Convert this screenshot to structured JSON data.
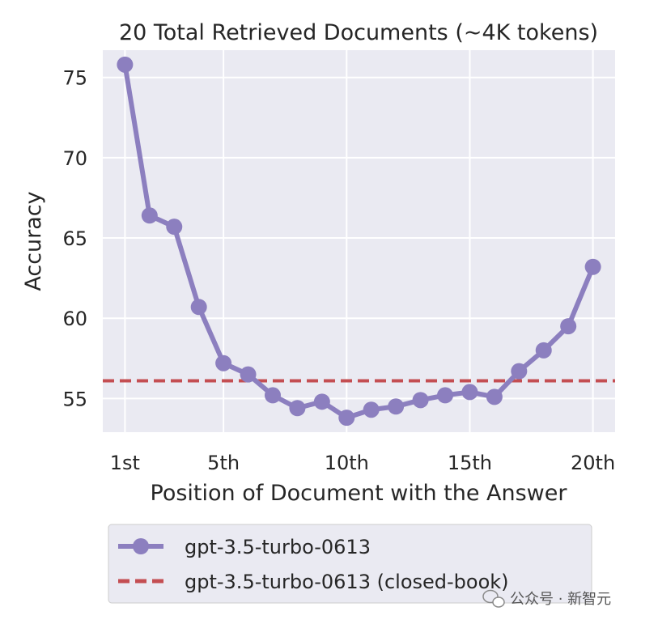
{
  "chart_data": {
    "type": "line",
    "title": "20 Total Retrieved Documents (~4K tokens)",
    "xlabel": "Position of Document with the Answer",
    "ylabel": "Accuracy",
    "x": [
      1,
      2,
      3,
      4,
      5,
      6,
      7,
      8,
      9,
      10,
      11,
      12,
      13,
      14,
      15,
      16,
      17,
      18,
      19,
      20
    ],
    "xticks": [
      1,
      5,
      10,
      15,
      20
    ],
    "xtick_labels": [
      "1st",
      "5th",
      "10th",
      "15th",
      "20th"
    ],
    "yticks": [
      55,
      60,
      65,
      70,
      75
    ],
    "xlim": [
      0.1,
      20.9
    ],
    "ylim": [
      52.9,
      76.7
    ],
    "grid": true,
    "series": [
      {
        "name": "gpt-3.5-turbo-0613",
        "color": "#8c7fbf",
        "values": [
          75.8,
          66.4,
          65.7,
          60.7,
          57.2,
          56.5,
          55.2,
          54.4,
          54.8,
          53.8,
          54.3,
          54.5,
          54.9,
          55.2,
          55.4,
          55.1,
          56.7,
          58.0,
          59.5,
          63.2
        ]
      }
    ],
    "reference_lines": [
      {
        "name": "gpt-3.5-turbo-0613 (closed-book)",
        "value": 56.1,
        "color": "#c44e52",
        "style": "dashed"
      }
    ],
    "legend_position": "below"
  },
  "watermark": {
    "text": "公众号 · 新智元",
    "icon": "wechat-icon"
  }
}
